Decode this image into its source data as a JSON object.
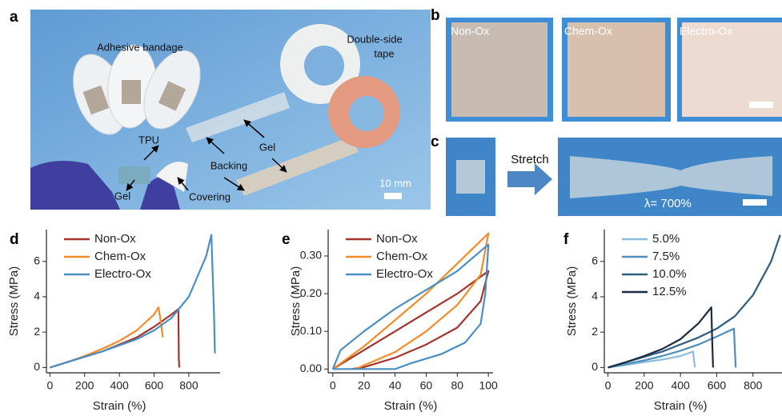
{
  "panels": {
    "a": "a",
    "b": "b",
    "c": "c",
    "d": "d",
    "e": "e",
    "f": "f"
  },
  "photo_a": {
    "bandage": "Adhesive bandage",
    "tape_line1": "Double-side",
    "tape_line2": "tape",
    "tpu": "TPU",
    "gel_left": "Gel",
    "backing": "Backing",
    "gel_right": "Gel",
    "covering": "Covering",
    "scale": "10 mm"
  },
  "photo_b": {
    "labels": [
      "Non-Ox",
      "Chem-Ox",
      "Electro-Ox"
    ]
  },
  "photo_c": {
    "arrow": "Stretch",
    "ratio": "λ= 700%"
  },
  "chart_data": [
    {
      "type": "line",
      "x_label": "Strain (%)",
      "y_label": "Stress (MPa)",
      "xlim": [
        -20,
        980
      ],
      "ylim": [
        -0.3,
        7.8
      ],
      "xticks": [
        0,
        200,
        400,
        600,
        800
      ],
      "yticks": [
        0,
        2,
        4,
        6
      ],
      "series": [
        {
          "name": "Non-Ox",
          "color": "#a3352c",
          "x": [
            0,
            100,
            200,
            300,
            400,
            500,
            600,
            700,
            740,
            742,
            745
          ],
          "values": [
            0,
            0.3,
            0.6,
            0.9,
            1.3,
            1.7,
            2.3,
            3.0,
            3.3,
            0.5,
            0
          ]
        },
        {
          "name": "Chem-Ox",
          "color": "#f28c28",
          "x": [
            0,
            100,
            200,
            300,
            400,
            500,
            600,
            625,
            640,
            650
          ],
          "values": [
            0,
            0.3,
            0.65,
            1.05,
            1.5,
            2.1,
            3.0,
            3.4,
            2.5,
            1.7
          ]
        },
        {
          "name": "Electro-Ox",
          "color": "#4a8fc4",
          "x": [
            0,
            100,
            200,
            300,
            400,
            500,
            600,
            700,
            800,
            900,
            930,
            945,
            950
          ],
          "values": [
            0,
            0.3,
            0.6,
            0.9,
            1.25,
            1.6,
            2.1,
            2.8,
            4.0,
            6.3,
            7.5,
            3.0,
            0.8
          ]
        }
      ]
    },
    {
      "type": "line",
      "x_label": "Strain (%)",
      "y_label": "Stress (MPa)",
      "xlim": [
        -3,
        103
      ],
      "ylim": [
        -0.01,
        0.37
      ],
      "xticks": [
        0,
        20,
        40,
        60,
        80,
        100
      ],
      "yticks": [
        {
          "value": 0,
          "label": "0.00"
        },
        {
          "value": 0.1,
          "label": "0.10"
        },
        {
          "value": 0.2,
          "label": "0.20"
        },
        {
          "value": 0.3,
          "label": "0.30"
        }
      ],
      "series": [
        {
          "name": "Non-Ox",
          "color": "#a3352c",
          "x": [
            0,
            20,
            40,
            60,
            80,
            100,
            95,
            80,
            60,
            40,
            20,
            12
          ],
          "values": [
            0,
            0.05,
            0.1,
            0.15,
            0.2,
            0.26,
            0.18,
            0.11,
            0.065,
            0.03,
            0.005,
            0
          ]
        },
        {
          "name": "Chem-Ox",
          "color": "#f28c28",
          "x": [
            0,
            20,
            40,
            60,
            80,
            100,
            95,
            80,
            60,
            40,
            20,
            15
          ],
          "values": [
            0,
            0.06,
            0.13,
            0.2,
            0.28,
            0.36,
            0.25,
            0.17,
            0.1,
            0.045,
            0.01,
            0
          ]
        },
        {
          "name": "Electro-Ox",
          "color": "#4a8fc4",
          "x": [
            0,
            5,
            20,
            40,
            60,
            80,
            97,
            100,
            98,
            95,
            85,
            70,
            50,
            40,
            0
          ],
          "values": [
            0,
            0.05,
            0.1,
            0.16,
            0.21,
            0.26,
            0.32,
            0.33,
            0.2,
            0.12,
            0.07,
            0.04,
            0.015,
            0,
            0
          ]
        }
      ]
    },
    {
      "type": "line",
      "x_label": "Strain (%)",
      "y_label": "Stress (MPa)",
      "xlim": [
        -20,
        960
      ],
      "ylim": [
        -0.3,
        7.8
      ],
      "xticks": [
        0,
        200,
        400,
        600,
        800
      ],
      "yticks": [
        0,
        2,
        4,
        6
      ],
      "series": [
        {
          "name": "5.0%",
          "color": "#8dbbdb",
          "x": [
            0,
            100,
            200,
            300,
            400,
            470,
            475,
            480
          ],
          "values": [
            0,
            0.15,
            0.3,
            0.45,
            0.65,
            0.9,
            0.4,
            0
          ]
        },
        {
          "name": "7.5%",
          "color": "#4b8ec2",
          "x": [
            0,
            100,
            200,
            300,
            400,
            500,
            600,
            695,
            700,
            705
          ],
          "values": [
            0,
            0.2,
            0.4,
            0.65,
            0.95,
            1.3,
            1.75,
            2.2,
            1.0,
            0
          ]
        },
        {
          "name": "10.0%",
          "color": "#2d5d82",
          "x": [
            0,
            100,
            200,
            300,
            400,
            500,
            600,
            700,
            800,
            900,
            950
          ],
          "values": [
            0,
            0.3,
            0.6,
            0.9,
            1.3,
            1.7,
            2.2,
            2.9,
            4.1,
            6.0,
            7.5
          ]
        },
        {
          "name": "12.5%",
          "color": "#1b2c42",
          "x": [
            0,
            100,
            200,
            300,
            400,
            500,
            570,
            575,
            580
          ],
          "values": [
            0,
            0.3,
            0.65,
            1.05,
            1.6,
            2.5,
            3.4,
            1.5,
            0
          ]
        }
      ]
    }
  ]
}
